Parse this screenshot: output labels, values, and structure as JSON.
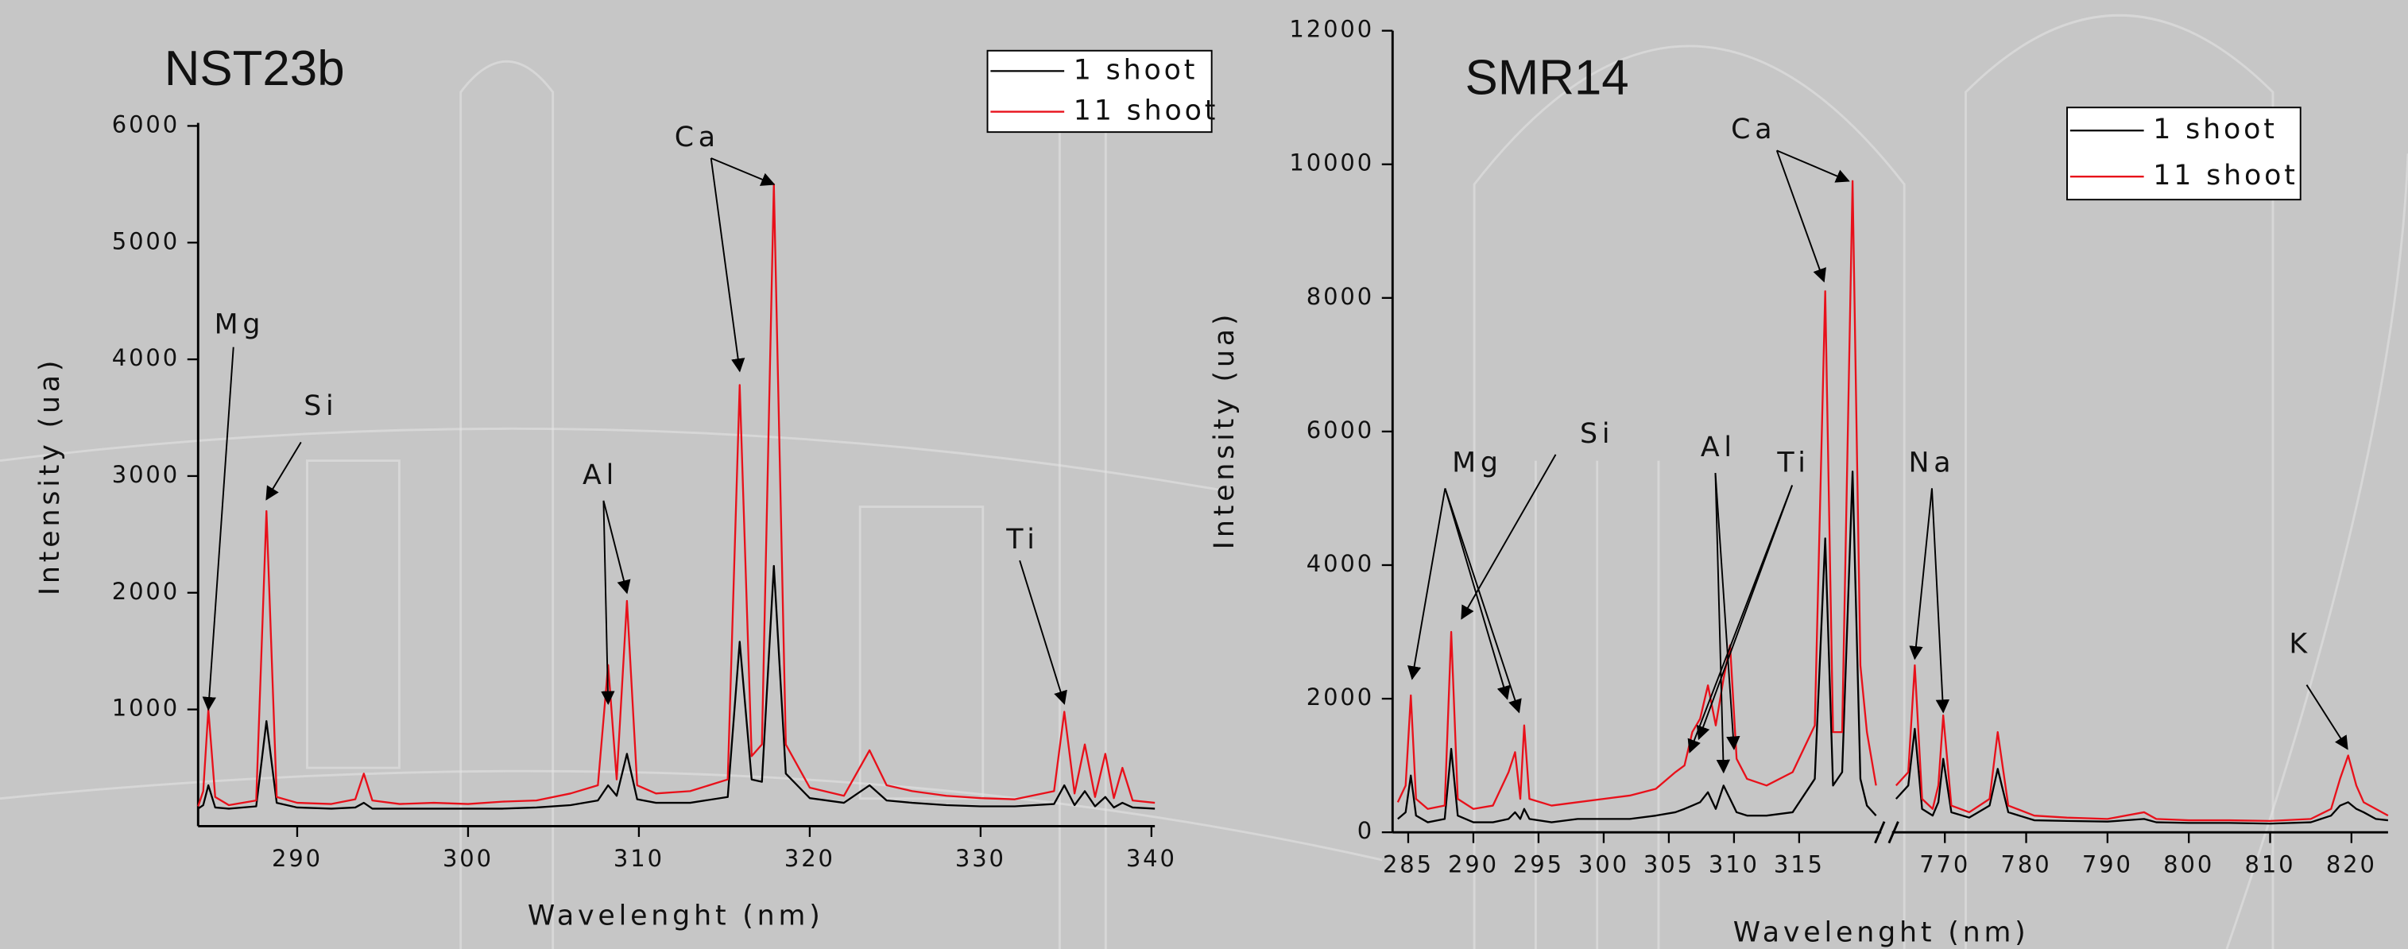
{
  "chart_data": [
    {
      "type": "line",
      "title": "NST23b",
      "x_label": "Wavelenght (nm)",
      "y_label": "Intensity (ua)",
      "xlim": [
        284.2,
        340.2
      ],
      "xticks": [
        290,
        300,
        310,
        320,
        330,
        340
      ],
      "ylim": [
        0,
        6000
      ],
      "yticks": [
        1000,
        2000,
        3000,
        4000,
        5000,
        6000
      ],
      "legend": "upper right",
      "x": [
        284.2,
        284.5,
        284.8,
        285.2,
        286,
        287.6,
        288.2,
        288.8,
        290,
        292,
        293.4,
        293.9,
        294.4,
        296,
        298,
        300,
        302,
        304,
        306,
        307.6,
        308.2,
        308.7,
        309.3,
        309.9,
        311,
        313,
        315.2,
        315.9,
        316.6,
        317.2,
        317.9,
        318.6,
        320,
        322,
        323.5,
        324.5,
        326,
        328,
        330,
        332,
        334.3,
        334.9,
        335.5,
        336.1,
        336.7,
        337.3,
        337.8,
        338.3,
        338.9,
        340.2
      ],
      "series": [
        {
          "name": "1 shoot",
          "color": "#000000",
          "values": [
            150,
            180,
            350,
            160,
            150,
            170,
            900,
            200,
            160,
            150,
            160,
            200,
            150,
            150,
            150,
            150,
            150,
            160,
            180,
            220,
            350,
            260,
            620,
            230,
            200,
            200,
            250,
            1580,
            400,
            380,
            2230,
            450,
            240,
            200,
            350,
            220,
            200,
            180,
            170,
            170,
            190,
            350,
            180,
            300,
            170,
            250,
            160,
            200,
            160,
            150
          ]
        },
        {
          "name": "11 shoot",
          "color": "#e8101a",
          "values": [
            170,
            300,
            1000,
            250,
            180,
            220,
            2700,
            250,
            200,
            190,
            230,
            450,
            220,
            190,
            200,
            190,
            210,
            220,
            280,
            350,
            1380,
            400,
            1930,
            350,
            280,
            300,
            400,
            3780,
            600,
            700,
            5500,
            700,
            330,
            260,
            650,
            350,
            300,
            260,
            240,
            230,
            300,
            980,
            280,
            700,
            250,
            620,
            240,
            500,
            220,
            200
          ]
        }
      ],
      "annotations": [
        {
          "text": "Mg",
          "targets": [
            [
              284.8,
              1000
            ]
          ]
        },
        {
          "text": "Si",
          "targets": [
            [
              288.2,
              2800
            ]
          ]
        },
        {
          "text": "Al",
          "targets": [
            [
              308.2,
              1050
            ],
            [
              309.3,
              2000
            ]
          ]
        },
        {
          "text": "Ca",
          "targets": [
            [
              315.9,
              3900
            ],
            [
              317.9,
              5500
            ]
          ]
        },
        {
          "text": "Ti",
          "targets": [
            [
              334.9,
              1050
            ]
          ]
        }
      ]
    },
    {
      "type": "line",
      "title": "SMR14",
      "x_label": "Wavelenght (nm)",
      "y_label": "Intensity (ua)",
      "x_segments": [
        {
          "xlim": [
            283.8,
            321.3
          ],
          "xticks": [
            285,
            290,
            295,
            300,
            305,
            310,
            315
          ]
        },
        {
          "xlim": [
            763.5,
            824.5
          ],
          "xticks": [
            770,
            780,
            790,
            800,
            810,
            820
          ]
        }
      ],
      "ylim": [
        0,
        12000
      ],
      "yticks": [
        0,
        2000,
        4000,
        6000,
        8000,
        10000,
        12000
      ],
      "legend": "upper right",
      "x": [
        284.2,
        284.8,
        285.2,
        285.6,
        286.5,
        287.8,
        288.3,
        288.8,
        290,
        291.5,
        292.7,
        293.2,
        293.6,
        293.9,
        294.3,
        296,
        298,
        300,
        302,
        304,
        305.5,
        306.2,
        306.8,
        307.4,
        308,
        308.6,
        309.2,
        309.7,
        310.2,
        311,
        312.5,
        314.5,
        316.2,
        317,
        317.6,
        318.3,
        319.1,
        319.7,
        320.2,
        320.9,
        null,
        764,
        765.5,
        766.3,
        767.2,
        768.5,
        769.2,
        769.8,
        770.8,
        773,
        775.5,
        776.5,
        777.8,
        781,
        785,
        790,
        794.5,
        796,
        800,
        805,
        810,
        815,
        817.5,
        818.6,
        819.6,
        820.6,
        821.5,
        823,
        824.5
      ],
      "series": [
        {
          "name": "1 shoot",
          "color": "#000000",
          "values": [
            200,
            300,
            850,
            250,
            150,
            200,
            1250,
            250,
            150,
            150,
            200,
            300,
            200,
            350,
            200,
            150,
            200,
            200,
            200,
            250,
            300,
            350,
            400,
            450,
            600,
            350,
            700,
            500,
            300,
            250,
            250,
            300,
            800,
            4400,
            700,
            900,
            5400,
            800,
            400,
            250,
            null,
            500,
            700,
            1550,
            350,
            250,
            450,
            1100,
            300,
            220,
            400,
            950,
            300,
            180,
            170,
            160,
            200,
            150,
            140,
            140,
            130,
            150,
            250,
            400,
            450,
            350,
            300,
            200,
            180
          ]
        },
        {
          "name": "11 shoot",
          "color": "#e8101a",
          "values": [
            450,
            700,
            2050,
            500,
            350,
            400,
            3000,
            500,
            350,
            400,
            900,
            1200,
            500,
            1600,
            500,
            400,
            450,
            500,
            550,
            650,
            900,
            1000,
            1500,
            1700,
            2200,
            1600,
            2300,
            2800,
            1100,
            800,
            700,
            900,
            1600,
            8100,
            1500,
            1500,
            9750,
            2500,
            1500,
            700,
            null,
            700,
            900,
            2500,
            500,
            350,
            700,
            1750,
            400,
            300,
            500,
            1500,
            400,
            250,
            220,
            200,
            300,
            200,
            180,
            180,
            170,
            200,
            350,
            800,
            1150,
            700,
            450,
            350,
            250
          ]
        }
      ],
      "annotations": [
        {
          "text": "Mg",
          "targets": [
            [
              285.3,
              2300
            ],
            [
              292.6,
              2000
            ],
            [
              293.5,
              1800
            ]
          ]
        },
        {
          "text": "Si",
          "targets": [
            [
              289.1,
              3200
            ]
          ]
        },
        {
          "text": "Al",
          "targets": [
            [
              309.2,
              900
            ],
            [
              310.0,
              1250
            ]
          ]
        },
        {
          "text": "Ti",
          "targets": [
            [
              306.6,
              1200
            ],
            [
              307.3,
              1400
            ]
          ]
        },
        {
          "text": "Ca",
          "targets": [
            [
              316.9,
              8250
            ],
            [
              318.8,
              9750
            ]
          ]
        },
        {
          "text": "Na",
          "targets": [
            [
              766.3,
              2600
            ],
            [
              769.8,
              1800
            ]
          ]
        },
        {
          "text": "K",
          "targets": [
            [
              819.5,
              1250
            ]
          ]
        }
      ]
    }
  ]
}
